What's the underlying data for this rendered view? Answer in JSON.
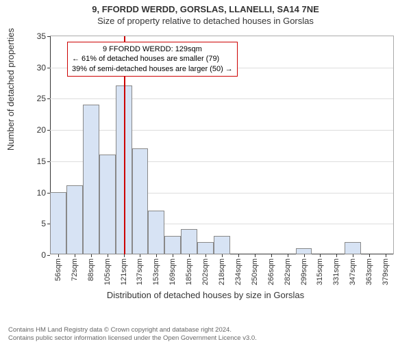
{
  "title_main": "9, FFORDD WERDD, GORSLAS, LLANELLI, SA14 7NE",
  "title_sub": "Size of property relative to detached houses in Gorslas",
  "ylabel": "Number of detached properties",
  "xlabel": "Distribution of detached houses by size in Gorslas",
  "chart": {
    "type": "histogram",
    "ylim": [
      0,
      35
    ],
    "ytick_step": 5,
    "yticks": [
      0,
      5,
      10,
      15,
      20,
      25,
      30,
      35
    ],
    "categories": [
      "56sqm",
      "72sqm",
      "88sqm",
      "105sqm",
      "121sqm",
      "137sqm",
      "153sqm",
      "169sqm",
      "185sqm",
      "202sqm",
      "218sqm",
      "234sqm",
      "250sqm",
      "266sqm",
      "282sqm",
      "299sqm",
      "315sqm",
      "331sqm",
      "347sqm",
      "363sqm",
      "379sqm"
    ],
    "values": [
      10,
      11,
      24,
      16,
      27,
      17,
      7,
      3,
      4,
      2,
      3,
      0,
      0,
      0,
      0,
      1,
      0,
      0,
      2,
      0,
      0
    ],
    "bar_fill": "#d7e3f4",
    "bar_border": "#888888",
    "grid_color": "#dddddd",
    "background_color": "#ffffff",
    "bar_width": 1.0,
    "refline": {
      "category_index": 4,
      "fraction_into_bin": 0.5,
      "color": "#cc0000"
    },
    "annotation": {
      "border_color": "#cc0000",
      "lines": [
        "9 FFORDD WERDD: 129sqm",
        "← 61% of detached houses are smaller (79)",
        "39% of semi-detached houses are larger (50) →"
      ]
    }
  },
  "footer_line1": "Contains HM Land Registry data © Crown copyright and database right 2024.",
  "footer_line2": "Contains public sector information licensed under the Open Government Licence v3.0."
}
